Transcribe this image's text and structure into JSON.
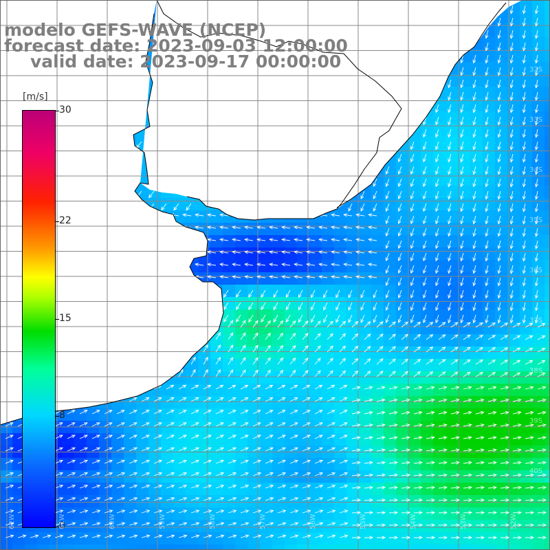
{
  "titles": {
    "line1": "modelo GEFS-WAVE (NCEP)",
    "line2": "forecast date: 2023-09-03 12:00:00",
    "line3": "valid date: 2023-09-17 00:00:00"
  },
  "colorbar": {
    "unit": "[m/s]",
    "ticks": [
      "30",
      "22",
      "15",
      "8",
      "0"
    ],
    "tick_values": [
      30,
      22,
      15,
      8,
      0
    ],
    "range": [
      0,
      30
    ],
    "colors": [
      "#0000ff",
      "#0a6bff",
      "#00d8ff",
      "#00ff99",
      "#00dd00",
      "#aaff00",
      "#ffff00",
      "#ff9900",
      "#ff2200",
      "#ee0066",
      "#bb0077"
    ]
  },
  "map": {
    "land_color": "#ffffff",
    "coastline_color": "#000000",
    "grid_color": "#888888",
    "field": "wind speed [m/s] with wind direction arrows",
    "lat_labels": [
      "32S",
      "33S",
      "34S",
      "35S",
      "36S",
      "37S",
      "38S",
      "39S",
      "40S"
    ],
    "lon_labels": [
      "62W",
      "61W",
      "60W",
      "59W",
      "58W",
      "57W",
      "56W",
      "55W",
      "54W",
      "53W",
      "52W"
    ]
  }
}
